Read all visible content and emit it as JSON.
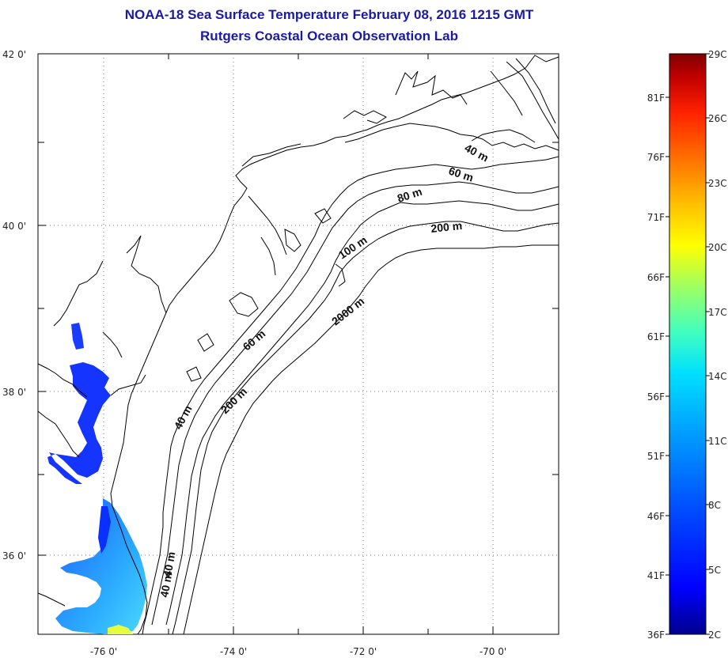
{
  "title": {
    "line1": "NOAA-18 Sea Surface Temperature February 08, 2016 1215 GMT",
    "line2": "Rutgers Coastal Ocean Observation Lab"
  },
  "map": {
    "lat_labels": [
      "42 0'",
      "40 0'",
      "38 0'",
      "36 0'"
    ],
    "lon_labels": [
      "-76 0'",
      "-74 0'",
      "-72 0'",
      "-70 0'"
    ],
    "lat_range": [
      35.0,
      42.0
    ],
    "lon_range": [
      -77.0,
      -69.0
    ],
    "contour_labels": [
      "40 m",
      "60 m",
      "80 m",
      "200 m",
      "100 m",
      "2000 m",
      "60 m",
      "200 m",
      "40 m",
      "40 m",
      "40 m"
    ]
  },
  "colorbar": {
    "celsius_labels": [
      "29C",
      "26C",
      "23C",
      "20C",
      "17C",
      "14C",
      "11C",
      "8C",
      "5C",
      "2C"
    ],
    "fahrenheit_labels": [
      "81F",
      "76F",
      "71F",
      "66F",
      "61F",
      "56F",
      "51F",
      "46F",
      "41F",
      "36F"
    ],
    "range_c": [
      2,
      29
    ],
    "colors": [
      "#00008b",
      "#0000ff",
      "#0050ff",
      "#00a0ff",
      "#00e0ff",
      "#40ffc0",
      "#a0ff60",
      "#ffff00",
      "#ffc000",
      "#ff7000",
      "#ff2000",
      "#c00000",
      "#800000"
    ]
  }
}
